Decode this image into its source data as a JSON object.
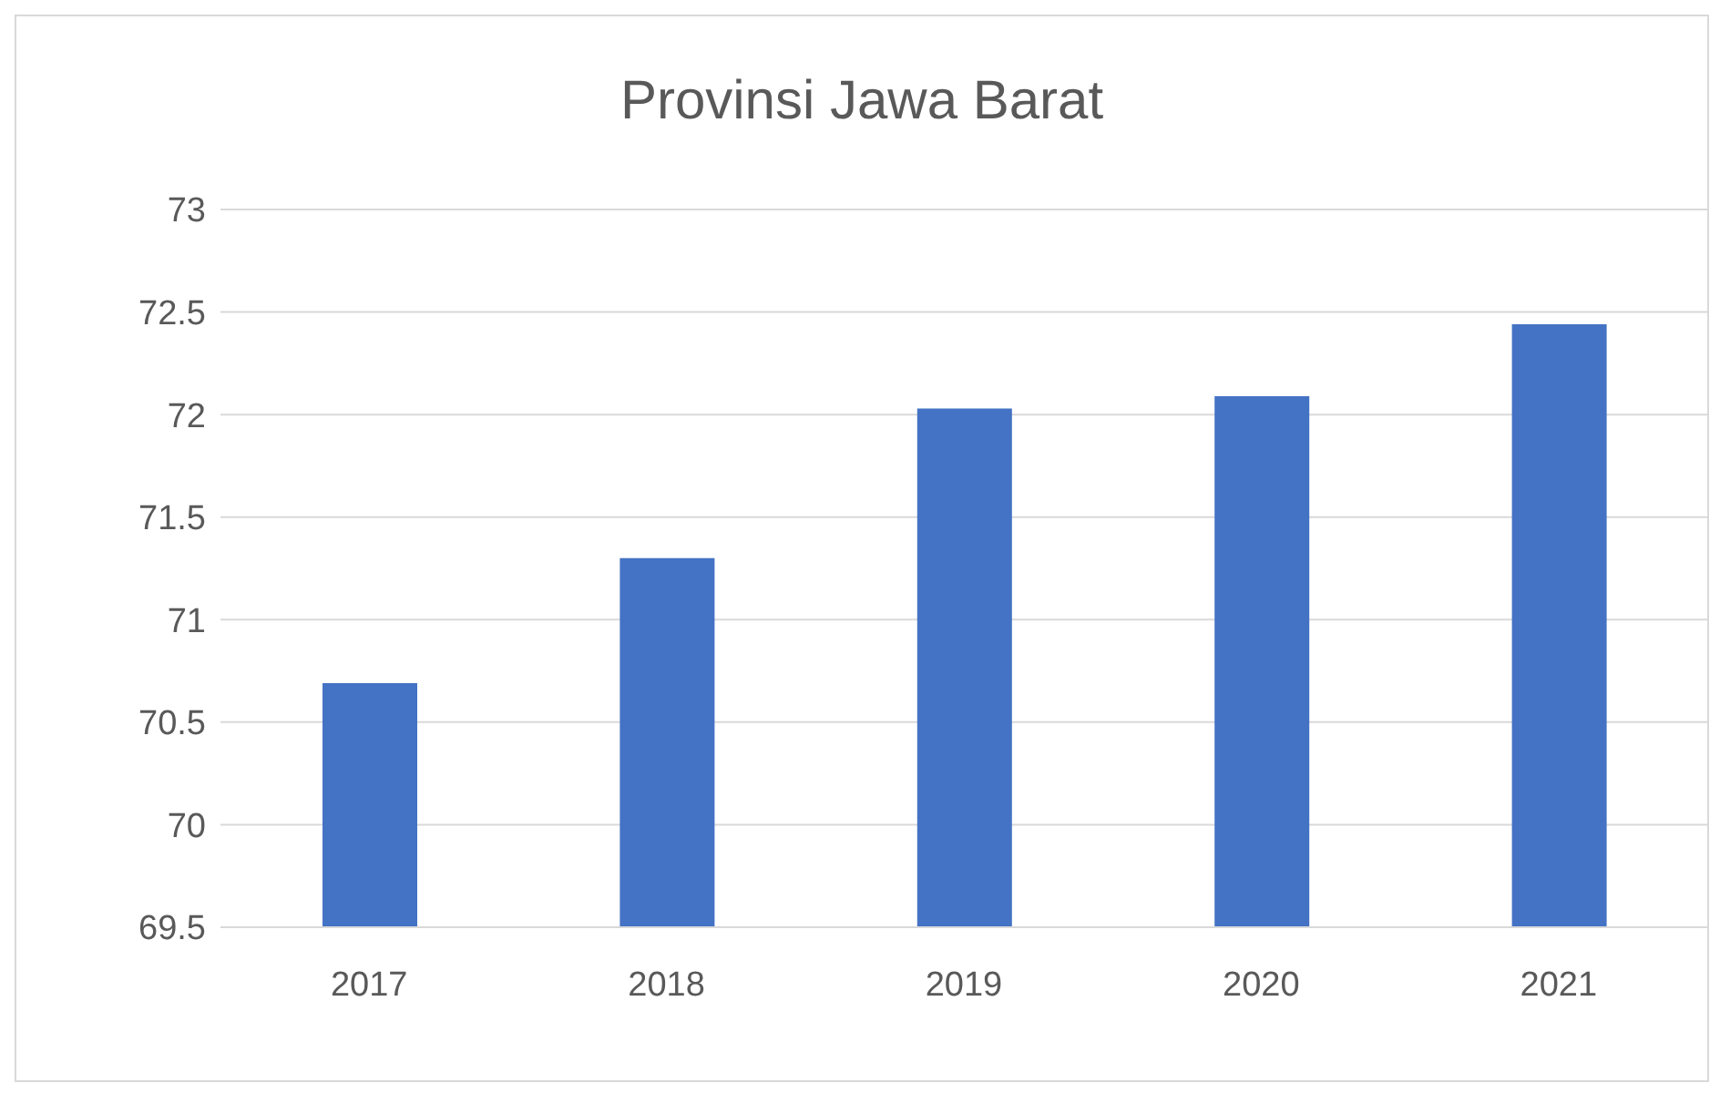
{
  "chart_data": {
    "type": "bar",
    "title": "Provinsi Jawa Barat",
    "categories": [
      "2017",
      "2018",
      "2019",
      "2020",
      "2021"
    ],
    "values": [
      70.69,
      71.3,
      72.03,
      72.09,
      72.44
    ],
    "color": "#4472c4",
    "ylim": [
      69.5,
      73
    ],
    "yticks": [
      69.5,
      70,
      70.5,
      71,
      71.5,
      72,
      72.5,
      73
    ],
    "grid": "y"
  }
}
